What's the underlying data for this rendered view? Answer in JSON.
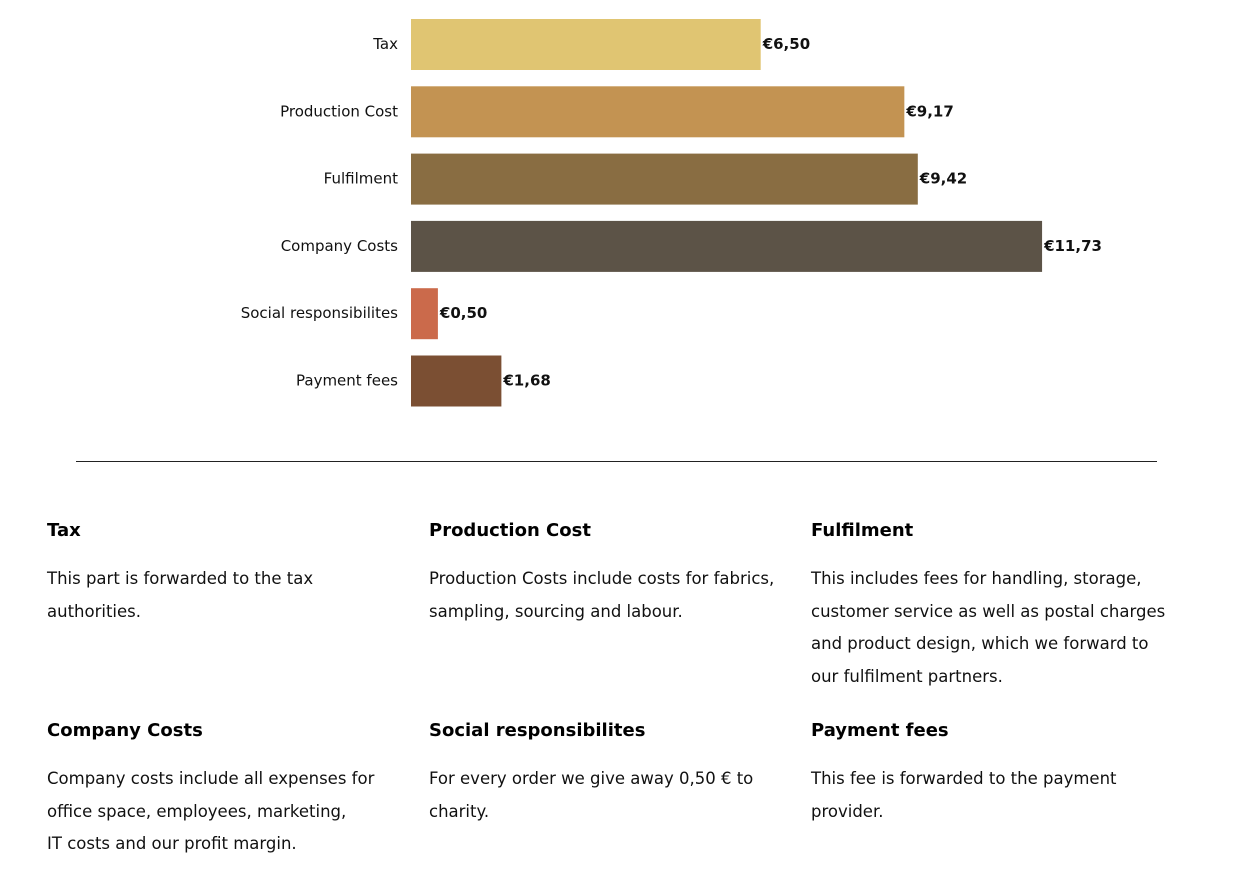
{
  "chart_data": {
    "type": "bar",
    "orientation": "horizontal",
    "categories": [
      "Tax",
      "Production Cost",
      "Fulfilment",
      "Company Costs",
      "Social responsibilites",
      "Payment fees"
    ],
    "values": [
      6.5,
      9.17,
      9.42,
      11.73,
      0.5,
      1.68
    ],
    "value_labels": [
      "€6,50",
      "€9,17",
      "€9,42",
      "€11,73",
      "€0,50",
      "€1,68"
    ],
    "colors": [
      "#e0c572",
      "#c39352",
      "#896d42",
      "#5c5347",
      "#cb6a4b",
      "#7b4f33"
    ],
    "grid": false,
    "legend": "none"
  },
  "descriptions": [
    {
      "title": "Tax",
      "text": "This part is forwarded to the   tax\nauthorities."
    },
    {
      "title": "Production Cost",
      "text": "Production Costs include costs for fabrics,\nsampling, sourcing and labour."
    },
    {
      "title": "Fulfilment",
      "text": "This includes fees for handling, storage,\ncustomer service as well as postal charges\nand product design, which we forward to\nour fulfilment partners."
    },
    {
      "title": "Company Costs",
      "text": "Company costs include all expenses for\noffice space, employees, marketing,\nIT costs and our profit margin."
    },
    {
      "title": "Social responsibilites",
      "text": "For every order we give away 0,50 € to\ncharity."
    },
    {
      "title": "Payment fees",
      "text": "This fee is forwarded to the payment\nprovider."
    }
  ]
}
